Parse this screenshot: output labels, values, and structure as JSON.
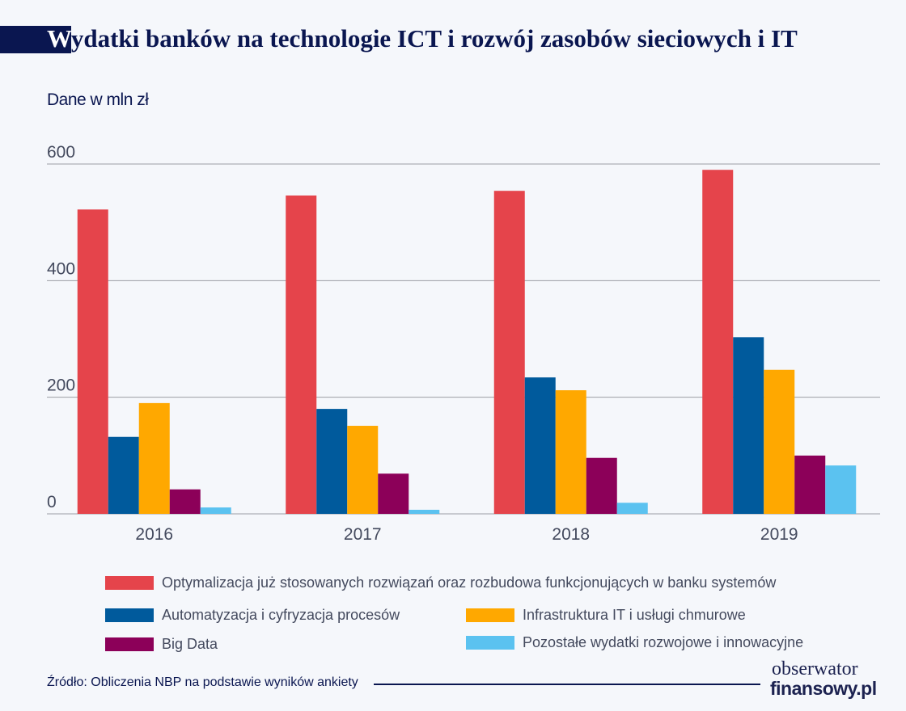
{
  "title_first_letter": "W",
  "title_rest": "ydatki banków na technologie ICT i rozwój zasobów sieciowych i IT",
  "unit_label": "Dane w mln zł",
  "source": "Źródło: Obliczenia NBP na podstawie wyników ankiety",
  "logo": {
    "line1": "obserwator",
    "line2": "finansowy.pl"
  },
  "chart_data": {
    "type": "bar",
    "title": "Wydatki banków na technologie ICT i rozwój zasobów sieciowych i IT",
    "ylabel": "Dane w mln zł",
    "categories": [
      "2016",
      "2017",
      "2018",
      "2019"
    ],
    "ylim": [
      0,
      600
    ],
    "yticks": [
      "0",
      "200",
      "400",
      "600"
    ],
    "grid": true,
    "legend": "bottom",
    "series": [
      {
        "name": "Optymalizacja już stosowanych rozwiązań oraz rozbudowa funkcjonujących w banku systemów",
        "color": "#e5444b",
        "values": [
          522,
          546,
          554,
          590
        ]
      },
      {
        "name": "Automatyzacja i cyfryzacja procesów",
        "color": "#005a9c",
        "values": [
          132,
          180,
          234,
          303
        ]
      },
      {
        "name": "Infrastruktura IT i usługi chmurowe",
        "color": "#ffa800",
        "values": [
          190,
          151,
          212,
          247
        ]
      },
      {
        "name": "Big Data",
        "color": "#8c0059",
        "values": [
          42,
          69,
          96,
          100
        ]
      },
      {
        "name": "Pozostałe wydatki rozwojowe i innowacyjne",
        "color": "#5bc2f0",
        "values": [
          11,
          7,
          19,
          83
        ]
      }
    ]
  }
}
